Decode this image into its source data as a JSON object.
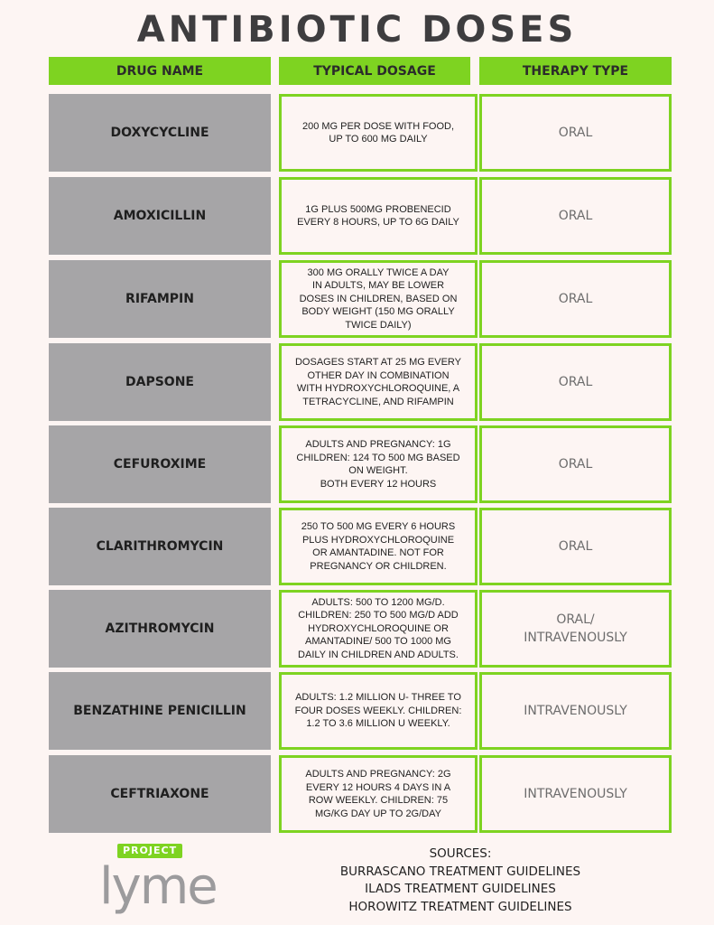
{
  "title": "ANTIBIOTIC DOSES",
  "headers": {
    "drug": "DRUG NAME",
    "dosage": "TYPICAL DOSAGE",
    "therapy": "THERAPY TYPE"
  },
  "rows": [
    {
      "drug": "DOXYCYCLINE",
      "dosage": "200 MG PER DOSE WITH FOOD,\nUP TO 600 MG DAILY",
      "therapy": "ORAL"
    },
    {
      "drug": "AMOXICILLIN",
      "dosage": "1G PLUS 500MG PROBENECID\nEVERY 8 HOURS,  UP TO 6G DAILY",
      "therapy": "ORAL"
    },
    {
      "drug": "RIFAMPIN",
      "dosage": "300 MG ORALLY TWICE A DAY\nIN ADULTS, MAY BE LOWER\nDOSES IN CHILDREN, BASED ON\nBODY WEIGHT (150 MG ORALLY\nTWICE DAILY)",
      "therapy": "ORAL"
    },
    {
      "drug": "DAPSONE",
      "dosage": "DOSAGES START AT 25 MG EVERY\nOTHER DAY IN COMBINATION\nWITH HYDROXYCHLOROQUINE, A\nTETRACYCLINE, AND RIFAMPIN",
      "therapy": "ORAL"
    },
    {
      "drug": "CEFUROXIME",
      "dosage": "ADULTS AND PREGNANCY: 1G\nCHILDREN: 124 TO 500 MG BASED\nON WEIGHT.\nBOTH EVERY 12 HOURS",
      "therapy": "ORAL"
    },
    {
      "drug": "CLARITHROMYCIN",
      "dosage": "250 TO 500 MG EVERY 6 HOURS\nPLUS HYDROXYCHLOROQUINE\nOR AMANTADINE. NOT FOR\nPREGNANCY OR CHILDREN.",
      "therapy": "ORAL"
    },
    {
      "drug": "AZITHROMYCIN",
      "dosage": "ADULTS: 500 TO 1200 MG/D.\nCHILDREN: 250 TO 500 MG/D ADD\nHYDROXYCHLOROQUINE OR\nAMANTADINE/ 500 TO 1000 MG\nDAILY IN CHILDREN AND ADULTS.",
      "therapy": "ORAL/\nINTRAVENOUSLY"
    },
    {
      "drug": "BENZATHINE PENICILLIN",
      "dosage": "ADULTS:  1.2 MILLION U- THREE TO\nFOUR DOSES WEEKLY.  CHILDREN:\n1.2 TO 3.6 MILLION U WEEKLY.",
      "therapy": "INTRAVENOUSLY"
    },
    {
      "drug": "CEFTRIAXONE",
      "dosage": "ADULTS AND PREGNANCY: 2G\nEVERY 12 HOURS 4 DAYS IN A\nROW WEEKLY. CHILDREN:  75\nMG/KG DAY UP TO 2G/DAY",
      "therapy": "INTRAVENOUSLY"
    }
  ],
  "logo": {
    "project": "PROJECT",
    "lyme": "lyme"
  },
  "sources": [
    "SOURCES:",
    "BURRASCANO TREATMENT GUIDELINES",
    "ILADS TREATMENT GUIDELINES",
    "HOROWITZ TREATMENT GUIDELINES"
  ],
  "colors": {
    "accent": "#7ed321",
    "name_cell": "#a6a5a7",
    "background": "#fdf5f3"
  }
}
